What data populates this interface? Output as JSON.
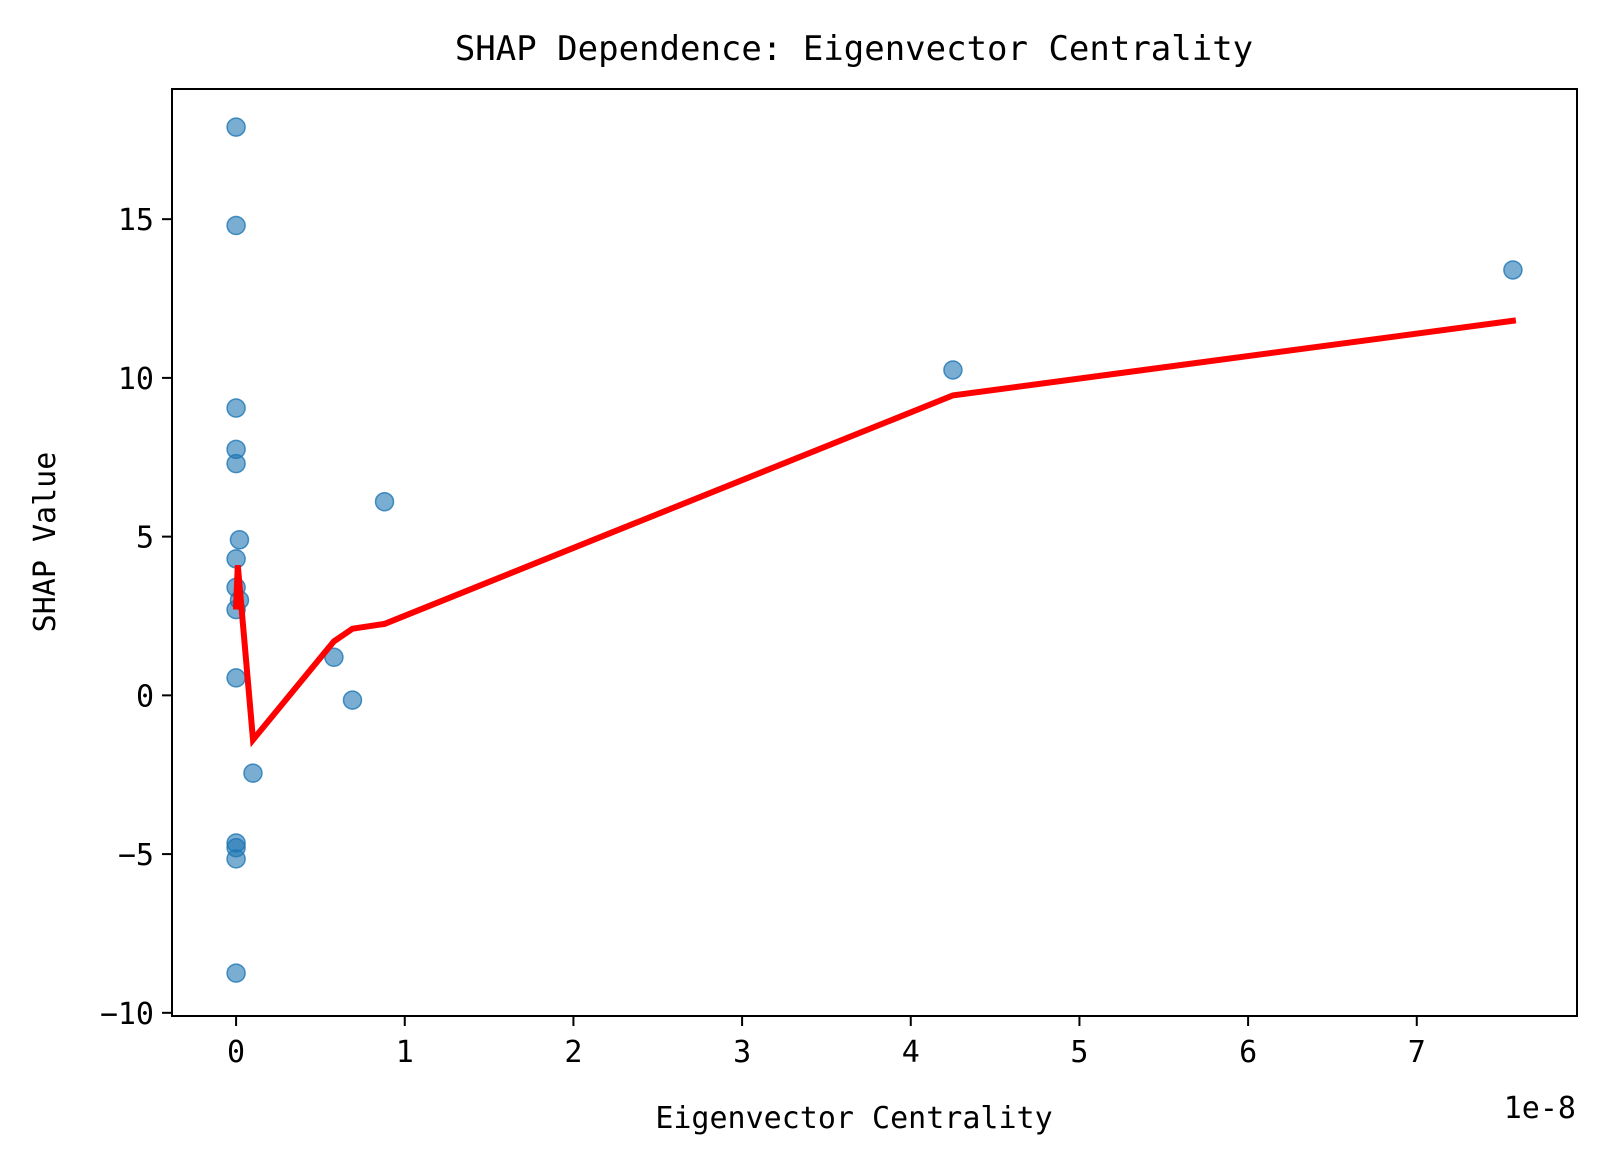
{
  "chart_data": {
    "type": "scatter",
    "title": "SHAP Dependence: Eigenvector Centrality",
    "xlabel": "Eigenvector Centrality",
    "ylabel": "SHAP Value",
    "x_offset_label": "1e-8",
    "x_scale_factor": 1e-08,
    "xlim": [
      -0.38,
      7.95
    ],
    "ylim": [
      -10.1,
      19.1
    ],
    "x_ticks": [
      0,
      1,
      2,
      3,
      4,
      5,
      6,
      7
    ],
    "y_ticks": [
      -10,
      -5,
      0,
      5,
      10,
      15
    ],
    "x_tick_labels": [
      "0",
      "1",
      "2",
      "3",
      "4",
      "5",
      "6",
      "7"
    ],
    "y_tick_labels": [
      "−10",
      "−5",
      "0",
      "5",
      "10",
      "15"
    ],
    "grid": false,
    "legend": "none",
    "series": [
      {
        "type": "scatter",
        "color": "#1f77b4",
        "opacity": 0.6,
        "points": [
          [
            0.0,
            17.9
          ],
          [
            0.0,
            14.8
          ],
          [
            0.0,
            9.05
          ],
          [
            0.0,
            7.75
          ],
          [
            0.0,
            7.3
          ],
          [
            0.02,
            4.9
          ],
          [
            0.0,
            4.3
          ],
          [
            0.0,
            3.4
          ],
          [
            0.02,
            3.0
          ],
          [
            0.0,
            2.7
          ],
          [
            0.0,
            0.55
          ],
          [
            0.1,
            -2.45
          ],
          [
            0.0,
            -4.65
          ],
          [
            0.0,
            -4.8
          ],
          [
            0.0,
            -5.15
          ],
          [
            0.0,
            -8.75
          ],
          [
            0.58,
            1.2
          ],
          [
            0.69,
            -0.15
          ],
          [
            0.88,
            6.1
          ],
          [
            4.25,
            10.25
          ],
          [
            7.57,
            13.4
          ]
        ]
      },
      {
        "type": "line",
        "color": "#ff0000",
        "points": [
          [
            0.0,
            2.8
          ],
          [
            0.01,
            4.1
          ],
          [
            0.1,
            -1.4
          ],
          [
            0.58,
            1.7
          ],
          [
            0.69,
            2.1
          ],
          [
            0.88,
            2.25
          ],
          [
            4.25,
            9.45
          ],
          [
            7.57,
            11.8
          ]
        ]
      }
    ]
  }
}
